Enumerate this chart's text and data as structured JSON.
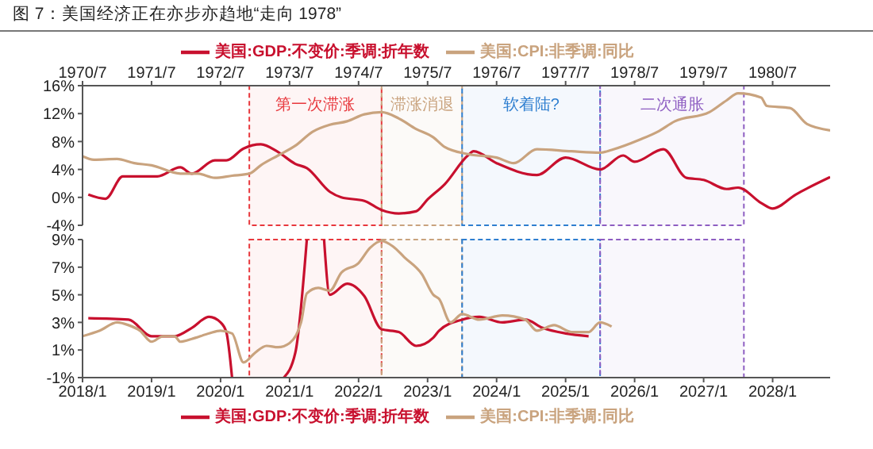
{
  "chart_data": [
    {
      "type": "line",
      "title": "图 7：美国经济正在亦步亦趋地“走向 1978”",
      "legend": "top",
      "grid": false,
      "marker": "none",
      "xlim": [
        "1970-07",
        "1981-05"
      ],
      "xticks": [
        {
          "value": "1970-07",
          "label": "1970/7"
        },
        {
          "value": "1971-07",
          "label": "1971/7"
        },
        {
          "value": "1972-07",
          "label": "1972/7"
        },
        {
          "value": "1973-07",
          "label": "1973/7"
        },
        {
          "value": "1974-07",
          "label": "1974/7"
        },
        {
          "value": "1975-07",
          "label": "1975/7"
        },
        {
          "value": "1976-07",
          "label": "1976/7"
        },
        {
          "value": "1977-07",
          "label": "1977/7"
        },
        {
          "value": "1978-07",
          "label": "1978/7"
        },
        {
          "value": "1979-07",
          "label": "1979/7"
        },
        {
          "value": "1980-07",
          "label": "1980/7"
        }
      ],
      "ylim": [
        -4,
        16
      ],
      "yticks": [
        {
          "value": -4,
          "label": "-4%"
        },
        {
          "value": 0,
          "label": "0%"
        },
        {
          "value": 4,
          "label": "4%"
        },
        {
          "value": 8,
          "label": "8%"
        },
        {
          "value": 12,
          "label": "12%"
        },
        {
          "value": 16,
          "label": "16%"
        }
      ],
      "bands": [
        {
          "axis": "x",
          "from": "1972-12",
          "to": "1974-11",
          "label": "第一次滞涨",
          "color": "#e8383d"
        },
        {
          "axis": "x",
          "from": "1974-11",
          "to": "1976-01",
          "label": "滞涨消退",
          "color": "#c9a37e"
        },
        {
          "axis": "x",
          "from": "1976-01",
          "to": "1978-01",
          "label": "软着陆?",
          "color": "#2f7fd0"
        },
        {
          "axis": "x",
          "from": "1978-01",
          "to": "1980-02",
          "label": "二次通胀",
          "color": "#8e5ec2"
        }
      ],
      "series": [
        {
          "name": "美国:GDP:不变价:季调:折年数",
          "color": "#c8102e",
          "x": [
            "1970-08",
            "1970-11",
            "1971-02",
            "1971-08",
            "1971-12",
            "1972-02",
            "1972-06",
            "1972-08",
            "1972-11",
            "1973-02",
            "1973-05",
            "1973-08",
            "1973-10",
            "1974-02",
            "1974-04",
            "1974-08",
            "1974-11",
            "1975-02",
            "1975-05",
            "1975-07",
            "1975-10",
            "1976-02",
            "1976-03",
            "1976-07",
            "1977-02",
            "1977-07",
            "1978-01",
            "1978-05",
            "1978-07",
            "1978-12",
            "1979-04",
            "1979-07",
            "1979-11",
            "1980-01",
            "1980-05",
            "1980-07",
            "1980-11",
            "1981-05"
          ],
          "values": [
            0.4,
            -0.2,
            3.0,
            3.0,
            4.3,
            3.4,
            5.3,
            5.3,
            7.0,
            7.6,
            6.5,
            4.8,
            4.2,
            0.8,
            0.0,
            -0.5,
            -1.8,
            -2.3,
            -2.0,
            -0.3,
            1.9,
            6.0,
            6.6,
            4.9,
            3.2,
            5.7,
            4.0,
            6.0,
            5.1,
            6.9,
            2.8,
            2.5,
            1.2,
            1.4,
            -0.8,
            -1.6,
            0.4,
            2.9
          ]
        },
        {
          "name": "美国:CPI:非季调:同比",
          "color": "#c9a37e",
          "x": [
            "1970-07",
            "1970-09",
            "1971-01",
            "1971-04",
            "1971-07",
            "1971-12",
            "1972-03",
            "1972-06",
            "1972-09",
            "1972-12",
            "1973-02",
            "1973-05",
            "1973-08",
            "1973-11",
            "1974-02",
            "1974-05",
            "1974-08",
            "1974-11",
            "1975-02",
            "1975-05",
            "1975-08",
            "1975-10",
            "1976-02",
            "1976-07",
            "1976-10",
            "1977-02",
            "1977-08",
            "1978-01",
            "1978-03",
            "1978-08",
            "1978-11",
            "1979-02",
            "1979-08",
            "1979-11",
            "1980-01",
            "1980-05",
            "1980-06",
            "1980-10",
            "1981-01",
            "1981-05"
          ],
          "values": [
            5.9,
            5.4,
            5.5,
            4.9,
            4.6,
            3.4,
            3.4,
            2.8,
            3.1,
            3.4,
            4.6,
            6.0,
            7.4,
            9.4,
            10.4,
            10.9,
            11.9,
            12.2,
            11.3,
            9.8,
            8.6,
            7.2,
            6.2,
            5.7,
            4.9,
            6.9,
            6.6,
            6.4,
            6.8,
            8.3,
            9.4,
            10.9,
            12.2,
            13.9,
            14.9,
            14.3,
            13.1,
            12.8,
            10.5,
            9.6
          ]
        }
      ]
    },
    {
      "type": "line",
      "legend": "bottom",
      "grid": false,
      "marker": "none",
      "xlim": [
        "2018-01",
        "2028-11"
      ],
      "xticks": [
        {
          "value": "2018-01",
          "label": "2018/1"
        },
        {
          "value": "2019-01",
          "label": "2019/1"
        },
        {
          "value": "2020-01",
          "label": "2020/1"
        },
        {
          "value": "2021-01",
          "label": "2021/1"
        },
        {
          "value": "2022-01",
          "label": "2022/1"
        },
        {
          "value": "2023-01",
          "label": "2023/1"
        },
        {
          "value": "2024-01",
          "label": "2024/1"
        },
        {
          "value": "2025-01",
          "label": "2025/1"
        },
        {
          "value": "2026-01",
          "label": "2026/1"
        },
        {
          "value": "2027-01",
          "label": "2027/1"
        },
        {
          "value": "2028-01",
          "label": "2028/1"
        }
      ],
      "ylim": [
        -1,
        9
      ],
      "yticks": [
        {
          "value": -1,
          "label": "-1%"
        },
        {
          "value": 1,
          "label": "1%"
        },
        {
          "value": 3,
          "label": "3%"
        },
        {
          "value": 5,
          "label": "5%"
        },
        {
          "value": 7,
          "label": "7%"
        },
        {
          "value": 9,
          "label": "9%"
        }
      ],
      "bands": [
        {
          "axis": "x",
          "from": "2020-06",
          "to": "2022-05",
          "color": "#e8383d"
        },
        {
          "axis": "x",
          "from": "2022-05",
          "to": "2023-07",
          "color": "#c9a37e"
        },
        {
          "axis": "x",
          "from": "2023-07",
          "to": "2025-07",
          "color": "#2f7fd0"
        },
        {
          "axis": "x",
          "from": "2025-07",
          "to": "2027-08",
          "color": "#8e5ec2"
        }
      ],
      "series": [
        {
          "name": "美国:GDP:不变价:季调:折年数",
          "color": "#c8102e",
          "x": [
            "2018-02",
            "2018-09",
            "2019-01",
            "2019-05",
            "2019-08",
            "2019-11",
            "2020-01",
            "2020-02",
            "2020-03",
            "2020-06",
            "2020-12",
            "2021-02",
            "2021-04",
            "2021-06",
            "2021-07",
            "2021-08",
            "2021-11",
            "2022-02",
            "2022-05",
            "2022-08",
            "2022-11",
            "2023-02",
            "2023-03",
            "2023-07",
            "2023-10",
            "2024-02",
            "2024-06",
            "2024-09",
            "2025-01",
            "2025-05"
          ],
          "values": [
            3.3,
            3.2,
            2.0,
            2.0,
            2.6,
            3.4,
            3.0,
            2.3,
            -1,
            null,
            -1,
            0.8,
            9,
            null,
            9,
            5.0,
            5.8,
            4.9,
            2.5,
            2.3,
            1.3,
            1.9,
            2.4,
            3.2,
            3.4,
            3.0,
            3.2,
            2.6,
            2.2,
            2.0
          ]
        },
        {
          "name": "美国:CPI:非季调:同比",
          "color": "#c9a37e",
          "x": [
            "2018-01",
            "2018-04",
            "2018-07",
            "2018-09",
            "2018-11",
            "2019-01",
            "2019-03",
            "2019-05",
            "2019-06",
            "2019-08",
            "2019-11",
            "2020-01",
            "2020-03",
            "2020-05",
            "2020-07",
            "2020-09",
            "2020-11",
            "2021-01",
            "2021-03",
            "2021-04",
            "2021-06",
            "2021-08",
            "2021-10",
            "2022-01",
            "2022-03",
            "2022-05",
            "2022-07",
            "2022-09",
            "2022-12",
            "2023-02",
            "2023-03",
            "2023-05",
            "2023-07",
            "2023-10",
            "2024-02",
            "2024-06",
            "2024-08",
            "2024-11",
            "2025-02",
            "2025-05",
            "2025-07",
            "2025-09"
          ],
          "values": [
            2.0,
            2.4,
            3.0,
            2.8,
            2.4,
            1.6,
            2.0,
            2.0,
            1.6,
            1.8,
            2.2,
            2.4,
            2.2,
            0.1,
            0.8,
            1.3,
            1.2,
            1.5,
            3.0,
            5.1,
            5.5,
            5.3,
            6.6,
            7.3,
            8.4,
            8.9,
            8.5,
            7.7,
            6.5,
            5.0,
            4.7,
            3.0,
            3.6,
            3.2,
            3.5,
            3.2,
            2.4,
            2.8,
            2.3,
            2.3,
            3.0,
            2.7
          ]
        }
      ]
    }
  ]
}
